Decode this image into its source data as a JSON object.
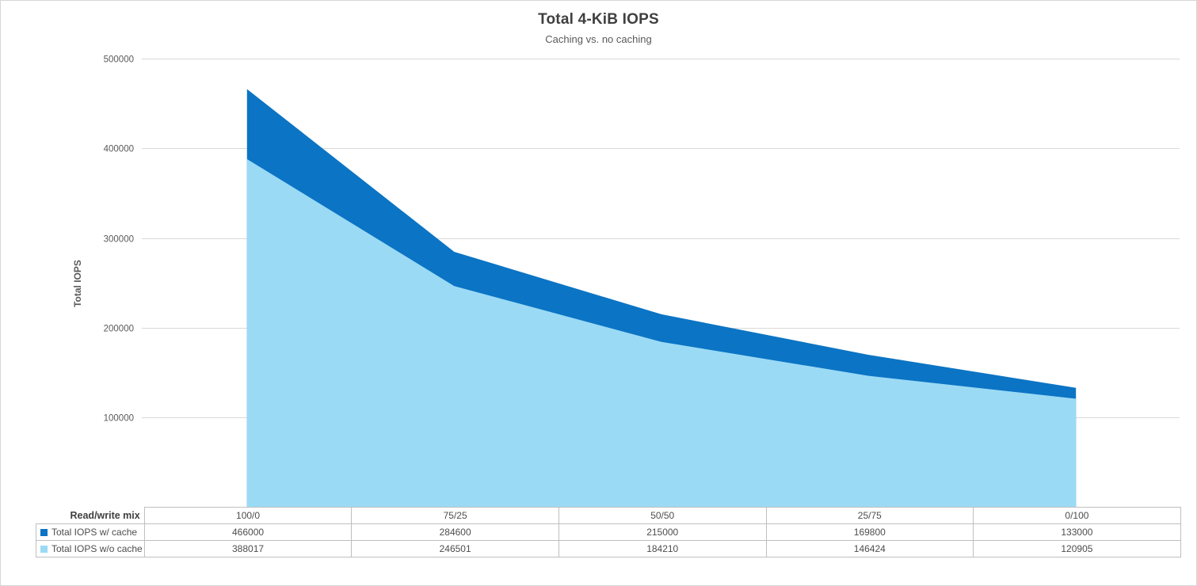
{
  "header": {
    "title": "Total 4-KiB IOPS",
    "subtitle": "Caching vs. no caching"
  },
  "chart_data": {
    "type": "area",
    "title": "Total 4-KiB IOPS",
    "subtitle": "Caching vs. no caching",
    "xlabel": "Read/write mix",
    "ylabel": "Total IOPS",
    "categories": [
      "100/0",
      "75/25",
      "50/50",
      "25/75",
      "0/100"
    ],
    "series": [
      {
        "name": "Total IOPS w/ cache",
        "color": "#0b74c4",
        "values": [
          466000,
          284600,
          215000,
          169800,
          133000
        ]
      },
      {
        "name": "Total IOPS w/o cache",
        "color": "#9bdaf5",
        "values": [
          388017,
          246501,
          184210,
          146424,
          120905
        ]
      }
    ],
    "ylim": [
      0,
      500000
    ],
    "yticks": [
      100000,
      200000,
      300000,
      400000,
      500000
    ],
    "grid": true,
    "legend_position": "table-below"
  },
  "colors": {
    "gridline": "#d9d9d9",
    "table_border": "#bfbfbf",
    "frame_border": "#d6d6d6"
  }
}
